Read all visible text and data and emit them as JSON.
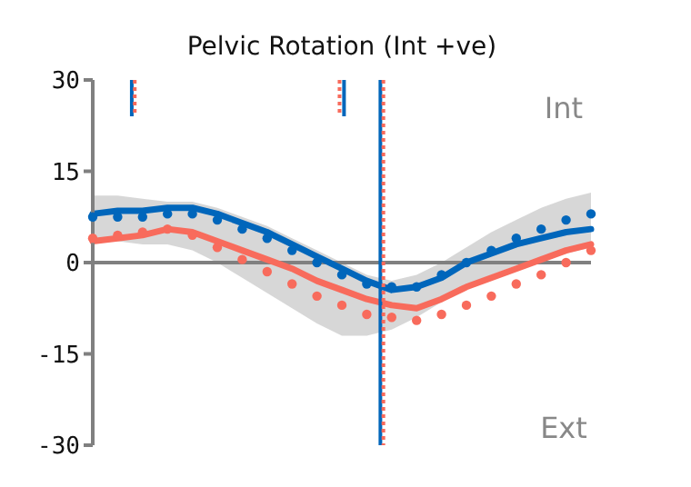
{
  "chart_data": {
    "type": "line",
    "title": "Pelvic Rotation (Int +ve)",
    "categories": [
      null,
      null,
      null,
      null,
      null,
      null,
      null,
      null,
      null,
      null,
      null,
      null,
      null,
      null,
      null,
      null,
      null,
      null,
      null,
      null,
      null
    ],
    "series": [
      {
        "type": "area",
        "color": "#d3d3d3",
        "values": [
          null,
          null,
          null,
          null,
          null,
          null,
          null,
          null,
          null,
          null,
          null,
          null,
          null,
          null,
          null,
          null,
          null,
          null,
          null,
          null,
          null
        ],
        "lower": [
          4,
          3.5,
          3,
          3,
          2,
          0,
          -2.5,
          -5,
          -7.5,
          -10,
          -12,
          -12,
          -11,
          -9,
          -6.5,
          -4,
          -2,
          -0.5,
          0.5,
          1.5,
          2.5
        ],
        "upper": [
          11,
          11,
          10.5,
          10,
          10,
          9,
          7.5,
          6,
          4,
          2,
          0,
          -2,
          -3,
          -2,
          0,
          2.5,
          5,
          7,
          9,
          10.5,
          11.5
        ]
      },
      {
        "color": "#0066bb",
        "line_style": "solid",
        "values": [
          8,
          8.5,
          8.5,
          9,
          9,
          8,
          6.5,
          5,
          3,
          1,
          -1,
          -3,
          -4.5,
          -4,
          -2.5,
          0,
          1.5,
          3,
          4,
          5,
          5.5
        ]
      },
      {
        "type": "scatter",
        "color": "#0066bb",
        "marker": "circle",
        "values": [
          7.5,
          7.5,
          7.5,
          8,
          8,
          7,
          5.5,
          4,
          2,
          0,
          -2,
          -3.5,
          -4,
          -4,
          -2,
          0,
          2,
          4,
          5.5,
          7,
          8
        ]
      },
      {
        "color": "#f86b5c",
        "line_style": "solid",
        "values": [
          3.5,
          4,
          4.5,
          5.5,
          5,
          3.5,
          2,
          0.5,
          -1,
          -3,
          -4.5,
          -6,
          -7,
          -7.5,
          -6,
          -4,
          -2.5,
          -1,
          0.5,
          2,
          3
        ]
      },
      {
        "type": "scatter",
        "color": "#f86b5c",
        "marker": "circle",
        "values": [
          4,
          4.5,
          5,
          5.5,
          4.5,
          2.5,
          0.5,
          -1.5,
          -3.5,
          -5.5,
          -7,
          -8.5,
          -9,
          -9.5,
          -8.5,
          -7,
          -5.5,
          -3.5,
          -2,
          0,
          2
        ]
      }
    ],
    "ref_lines": [
      {
        "axis": "y",
        "value": 0,
        "color": "#808080",
        "line_style": "solid"
      }
    ],
    "annotations": [
      "Int",
      "Ext"
    ],
    "ylim": [
      -30,
      30
    ],
    "yticks": [
      -30,
      -15,
      0,
      15,
      30
    ],
    "tick_labels": "y",
    "grid": false,
    "legend": false
  }
}
